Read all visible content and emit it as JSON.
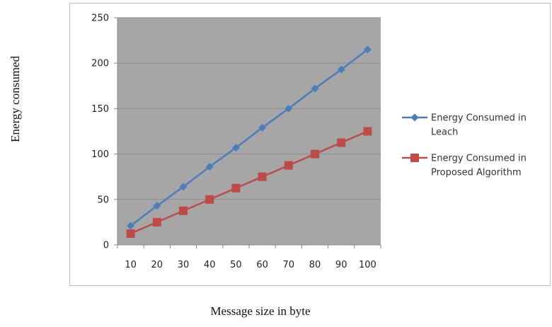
{
  "chart_data": {
    "type": "line",
    "xlabel": "Message size in byte",
    "ylabel": "Energy consumed",
    "categories": [
      "10",
      "20",
      "30",
      "40",
      "50",
      "60",
      "70",
      "80",
      "90",
      "100"
    ],
    "ylim": [
      0,
      250
    ],
    "yticks": [
      0,
      50,
      100,
      150,
      200,
      250
    ],
    "grid": true,
    "plot_background": "#a6a6a6",
    "legend_position": "right",
    "series": [
      {
        "name": "Energy Consumed in Leach",
        "legend_lines": [
          "Energy Consumed in",
          "Leach"
        ],
        "color": "#4a7ebb",
        "marker": "diamond",
        "values": [
          21,
          43,
          64,
          86,
          107,
          129,
          150,
          172,
          193,
          215
        ]
      },
      {
        "name": "Energy Consumed in Proposed Algorithm",
        "legend_lines": [
          "Energy Consumed in",
          "Proposed Algorithm"
        ],
        "color": "#be4b48",
        "marker": "square",
        "values": [
          12.5,
          25,
          37.5,
          50,
          62.5,
          75,
          87.5,
          100,
          112.5,
          125
        ]
      }
    ]
  }
}
